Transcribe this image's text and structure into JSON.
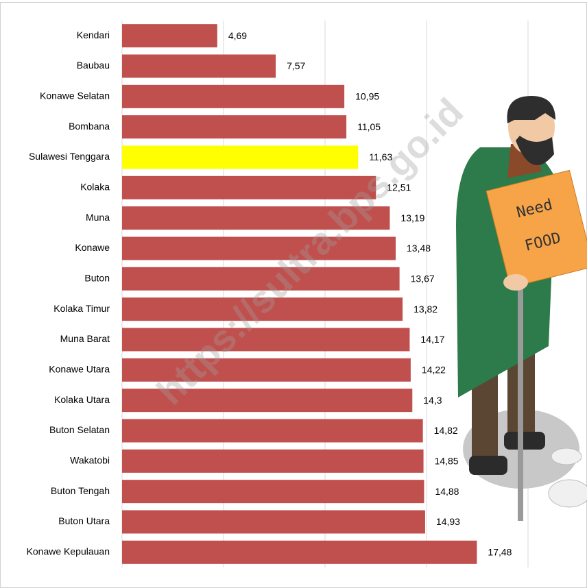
{
  "chart_data": {
    "type": "bar",
    "orientation": "horizontal",
    "categories": [
      "Kendari",
      "Baubau",
      "Konawe Selatan",
      "Bombana",
      "Sulawesi Tenggara",
      "Kolaka",
      "Muna",
      "Konawe",
      "Buton",
      "Kolaka Timur",
      "Muna Barat",
      "Konawe Utara",
      "Kolaka Utara",
      "Buton Selatan",
      "Wakatobi",
      "Buton Tengah",
      "Buton Utara",
      "Konawe Kepulauan"
    ],
    "values": [
      4.69,
      7.57,
      10.95,
      11.05,
      11.63,
      12.51,
      13.19,
      13.48,
      13.67,
      13.82,
      14.17,
      14.22,
      14.3,
      14.82,
      14.85,
      14.88,
      14.93,
      17.48
    ],
    "value_labels": [
      "4,69",
      "7,57",
      "10,95",
      "11,05",
      "11,63",
      "12,51",
      "13,19",
      "13,48",
      "13,67",
      "13,82",
      "14,17",
      "14,22",
      "14,3",
      "14,82",
      "14,85",
      "14,88",
      "14,93",
      "17,48"
    ],
    "colors": [
      "#c0504d",
      "#c0504d",
      "#c0504d",
      "#c0504d",
      "#ffff00",
      "#c0504d",
      "#c0504d",
      "#c0504d",
      "#c0504d",
      "#c0504d",
      "#c0504d",
      "#c0504d",
      "#c0504d",
      "#c0504d",
      "#c0504d",
      "#c0504d",
      "#c0504d",
      "#c0504d"
    ],
    "xlim": [
      0,
      20
    ],
    "xticks": [
      0,
      5,
      10,
      15,
      20
    ],
    "grid": true,
    "watermark": "https://sultra.bps.go.id",
    "illustration_text": [
      "Need",
      "FOOD"
    ]
  }
}
